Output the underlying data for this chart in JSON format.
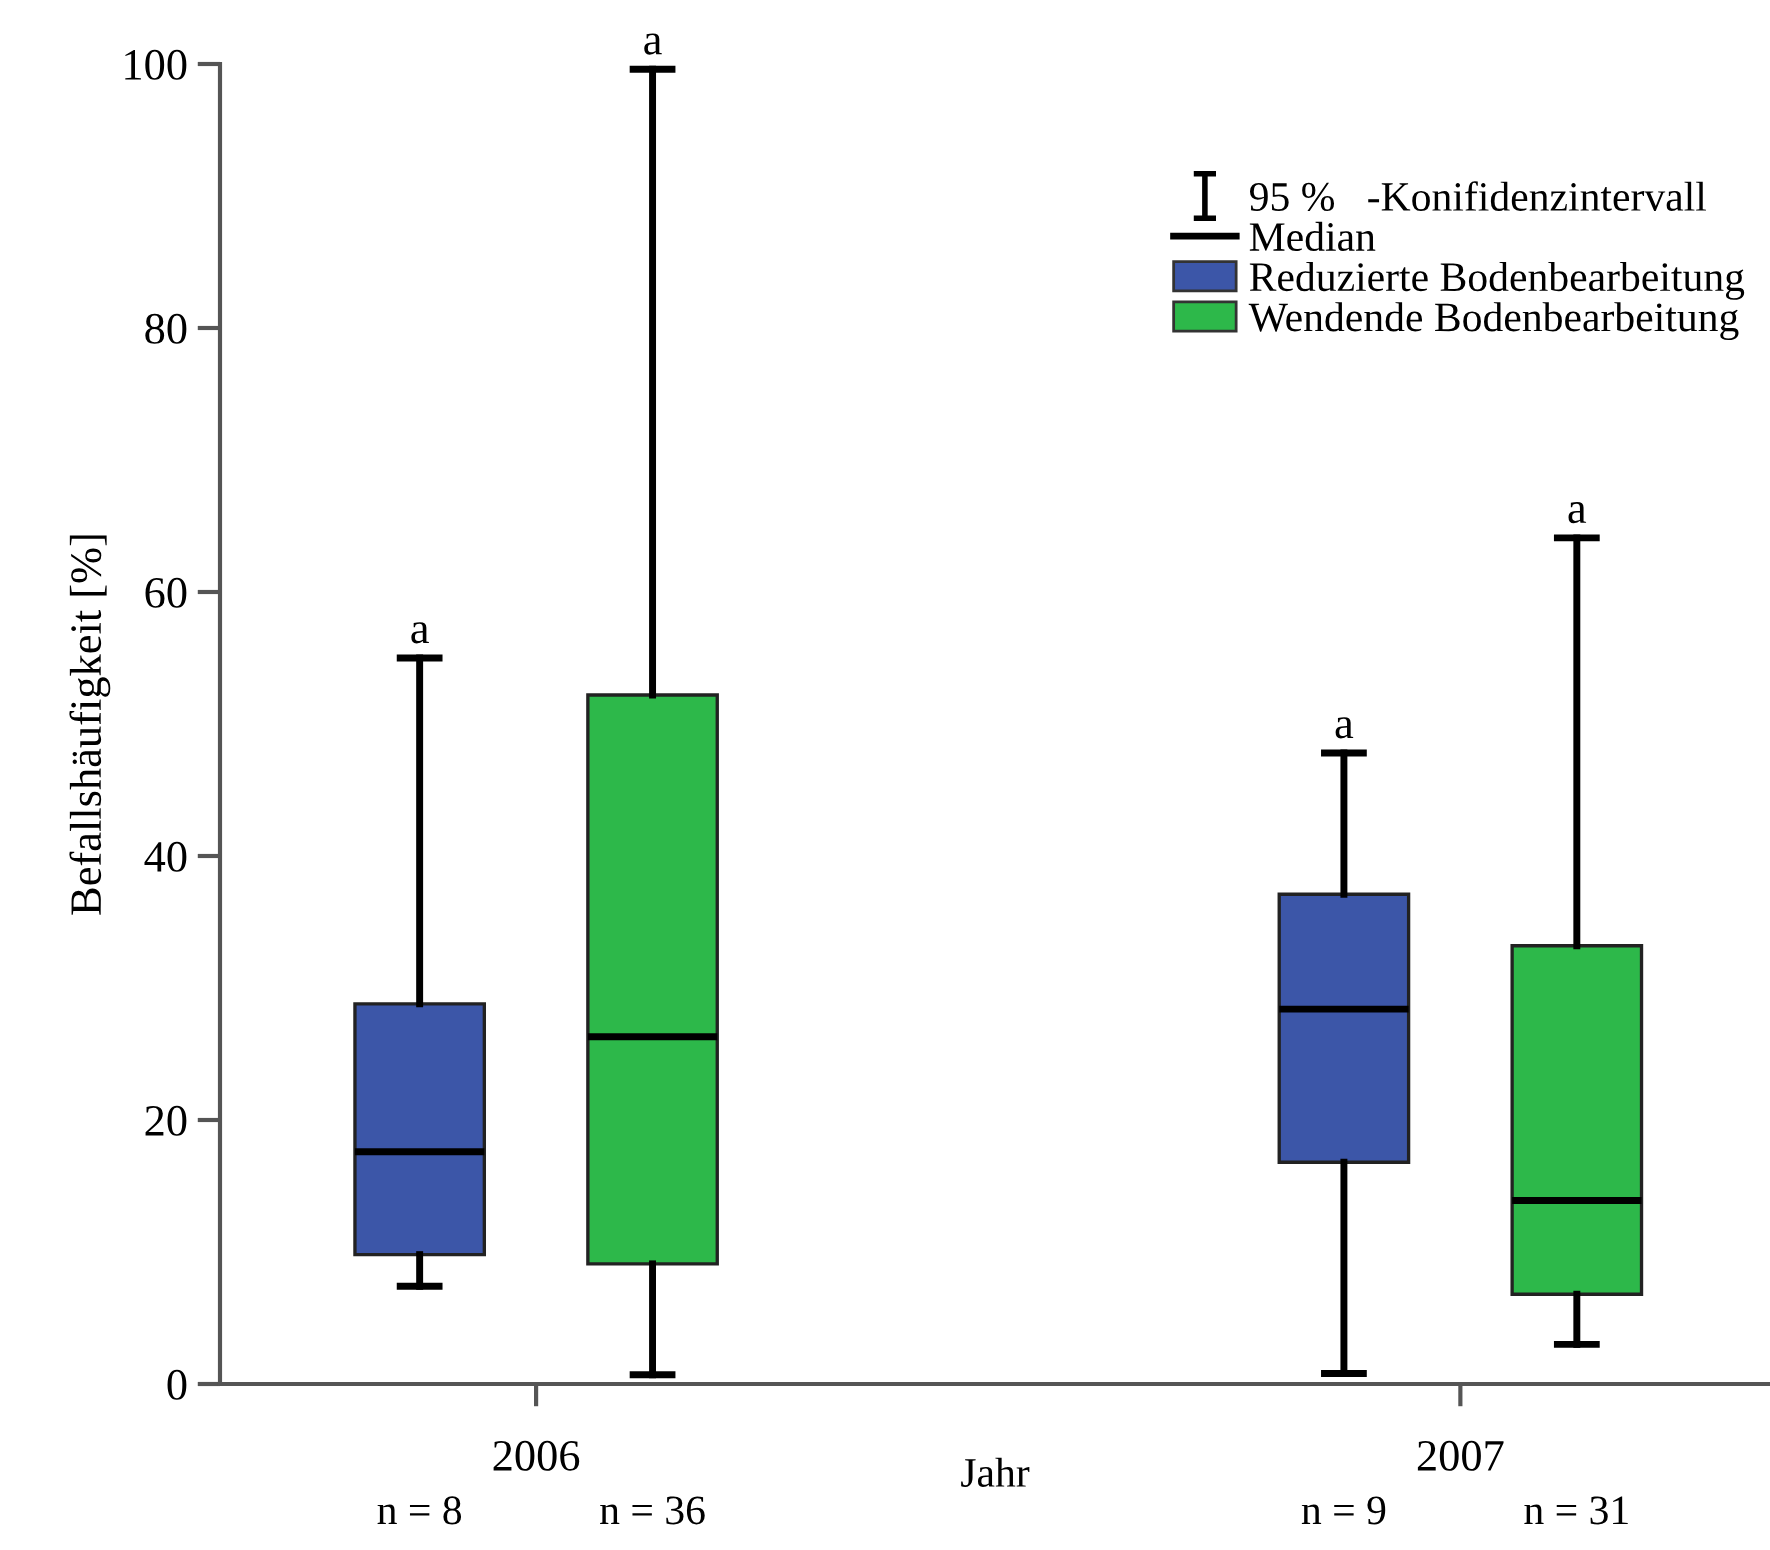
{
  "chart_data": {
    "type": "box",
    "xlabel": "Jahr",
    "ylabel": "Befallshäufigkeit [%]",
    "categories": [
      "2006",
      "2007"
    ],
    "series": [
      {
        "name": "Reduzierte Bodenbearbeitung",
        "color": "#3c56a8",
        "boxes": [
          {
            "low": 7.4,
            "q1": 9.8,
            "median": 17.6,
            "q3": 28.8,
            "high": 55.0
          },
          {
            "low": 0.8,
            "q1": 16.8,
            "median": 28.4,
            "q3": 37.1,
            "high": 47.8
          }
        ]
      },
      {
        "name": "Wendende Bodenbearbeitung",
        "color": "#2db84a",
        "boxes": [
          {
            "low": 0.7,
            "q1": 9.1,
            "median": 26.3,
            "q3": 52.2,
            "high": 99.6
          },
          {
            "low": 3.0,
            "q1": 6.8,
            "median": 13.9,
            "q3": 33.2,
            "high": 64.1
          }
        ]
      }
    ],
    "ylim": [
      0,
      100
    ],
    "yticks": [
      0,
      20,
      40,
      60,
      80,
      100
    ],
    "grid": false,
    "legend": "top right",
    "annotations": [
      "95 %   -Konifidenzintervall",
      "Median",
      "n = 8",
      "n = 36",
      "n = 9",
      "n = 31",
      "a",
      "a",
      "a",
      "a"
    ]
  }
}
